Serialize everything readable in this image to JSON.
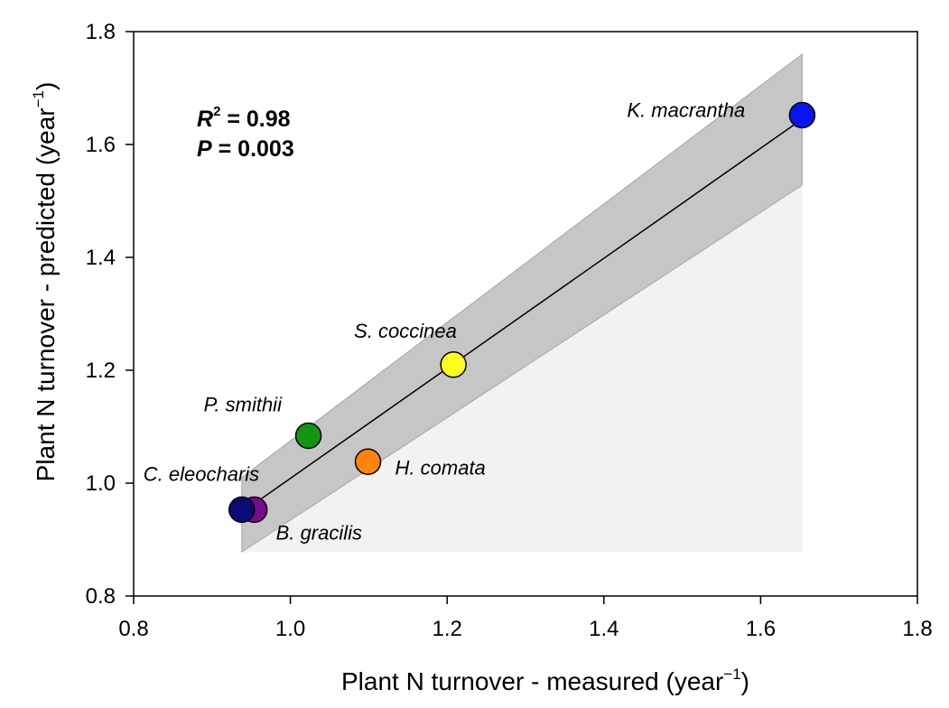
{
  "chart_data": {
    "type": "scatter",
    "xlabel": "Plant N turnover - measured (year",
    "ylabel": "Plant N turnover - predicted (year",
    "unit_exponent": "−1",
    "unit_close": ")",
    "xlim": [
      0.8,
      1.8
    ],
    "ylim": [
      0.8,
      1.8
    ],
    "xticks": [
      "0.8",
      "1.0",
      "1.2",
      "1.4",
      "1.6",
      "1.8"
    ],
    "yticks": [
      "0.8",
      "1.0",
      "1.2",
      "1.4",
      "1.6",
      "1.8"
    ],
    "points": [
      {
        "label": "K. macrantha",
        "x": 1.653,
        "y": 1.652,
        "color": "#0a14f0"
      },
      {
        "label": "S. coccinea",
        "x": 1.208,
        "y": 1.21,
        "color": "#ffff1e"
      },
      {
        "label": "P. smithii",
        "x": 1.023,
        "y": 1.084,
        "color": "#129612"
      },
      {
        "label": "H. comata",
        "x": 1.099,
        "y": 1.038,
        "color": "#ff820a"
      },
      {
        "label": "C. eleocharis",
        "x": 0.938,
        "y": 0.953,
        "color": "#0a0a78"
      },
      {
        "label": "B. gracilis",
        "x": 0.954,
        "y": 0.953,
        "color": "#780a8c"
      }
    ],
    "regression": {
      "x": [
        0.938,
        1.653
      ],
      "y": [
        0.948,
        1.645
      ]
    },
    "confidence_band": {
      "x": [
        0.938,
        1.653
      ],
      "upper": [
        1.01,
        1.76
      ],
      "lower": [
        0.878,
        1.528
      ]
    },
    "stats": {
      "r2_symbol": "R",
      "r2_sup": "2",
      "r2_value": " = 0.98",
      "p_symbol": "P",
      "p_value": " = 0.003"
    },
    "grid": false,
    "legend": "none"
  }
}
